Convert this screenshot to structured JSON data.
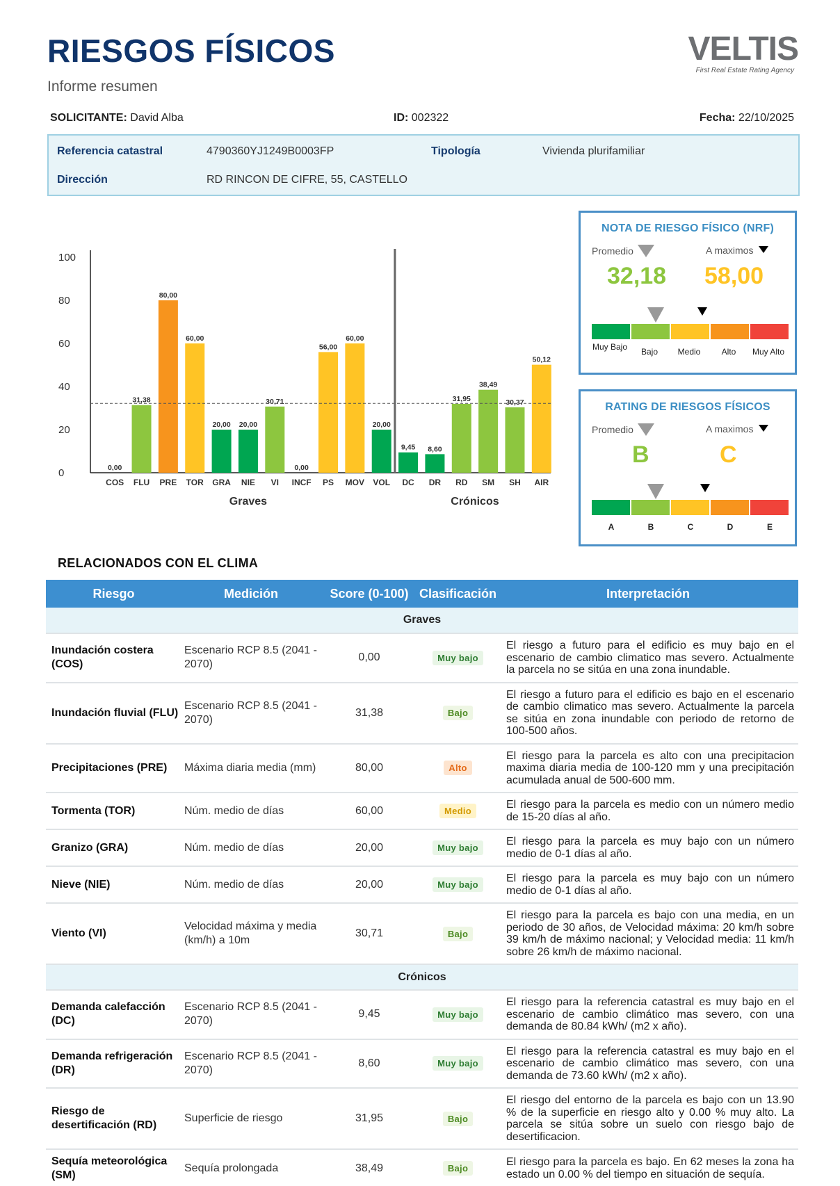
{
  "header": {
    "title": "RIESGOS FÍSICOS",
    "subtitle": "Informe resumen",
    "logo_text": "VELTIS",
    "logo_tagline": "First Real Estate Rating Agency"
  },
  "meta": {
    "solicitante_label": "SOLICITANTE:",
    "solicitante_value": "David Alba",
    "id_label": "ID:",
    "id_value": "002322",
    "fecha_label": "Fecha:",
    "fecha_value": "22/10/2025"
  },
  "info": {
    "ref_label": "Referencia catastral",
    "ref_value": "4790360YJ1249B0003FP",
    "tipo_label": "Tipología",
    "tipo_value": "Vivienda plurifamiliar",
    "dir_label": "Dirección",
    "dir_value": "RD RINCON DE CIFRE, 55, CASTELLO"
  },
  "chart_data": {
    "type": "bar",
    "categories": [
      "COS",
      "FLU",
      "PRE",
      "TOR",
      "GRA",
      "NIE",
      "VI",
      "INCF",
      "PS",
      "MOV",
      "VOL",
      "DC",
      "DR",
      "RD",
      "SM",
      "SH",
      "AIR"
    ],
    "values": [
      0.0,
      31.38,
      80.0,
      60.0,
      20.0,
      20.0,
      30.71,
      0.0,
      56.0,
      60.0,
      20.0,
      9.45,
      8.6,
      31.95,
      38.49,
      30.37,
      50.12
    ],
    "value_labels": [
      "0,00",
      "31,38",
      "80,00",
      "60,00",
      "20,00",
      "20,00",
      "30,71",
      "0,00",
      "56,00",
      "60,00",
      "20,00",
      "9,45",
      "8,60",
      "31,95",
      "38,49",
      "30,37",
      "50,12"
    ],
    "colors": [
      "#00a651",
      "#8dc63f",
      "#f7941d",
      "#ffc425",
      "#00a651",
      "#00a651",
      "#8dc63f",
      "#00a651",
      "#ffc425",
      "#ffc425",
      "#00a651",
      "#00a651",
      "#00a651",
      "#8dc63f",
      "#8dc63f",
      "#8dc63f",
      "#ffc425"
    ],
    "groups": [
      {
        "label": "Graves",
        "from": 0,
        "to": 10
      },
      {
        "label": "Crónicos",
        "from": 11,
        "to": 16
      }
    ],
    "average_line": 32.18,
    "ylim": [
      0,
      100
    ],
    "yticks": [
      0,
      20,
      40,
      60,
      80,
      100
    ]
  },
  "nrf": {
    "title": "NOTA DE RIESGO FÍSICO (NRF)",
    "promedio_label": "Promedio",
    "maximos_label": "A maximos",
    "promedio_value": "32,18",
    "maximos_value": "58,00",
    "promedio_color": "#8dc63f",
    "maximos_color": "#ffc425",
    "scale_labels": [
      "Muy Bajo",
      "Bajo",
      "Medio",
      "Alto",
      "Muy Alto"
    ]
  },
  "rating": {
    "title": "RATING DE RIESGOS FÍSICOS",
    "promedio_label": "Promedio",
    "maximos_label": "A maximos",
    "promedio_value": "B",
    "maximos_value": "C",
    "scale_labels": [
      "A",
      "B",
      "C",
      "D",
      "E"
    ]
  },
  "scale_colors": [
    "#00a651",
    "#8dc63f",
    "#ffc425",
    "#f7941d",
    "#f0433a"
  ],
  "table": {
    "section_title": "RELACIONADOS CON EL CLIMA",
    "headers": [
      "Riesgo",
      "Medición",
      "Score (0-100)",
      "Clasificación",
      "Interpretación"
    ],
    "group_graves": "Graves",
    "group_cronicos": "Crónicos",
    "rows": [
      {
        "riesgo": "Inundación costera (COS)",
        "medicion": "Escenario RCP 8.5 (2041 - 2070)",
        "score": "0,00",
        "clase": "Muy bajo",
        "interp": "El riesgo a futuro para el edificio es muy bajo en el escenario de cambio climatico mas severo. Actualmente la parcela no se sitúa en una zona inundable."
      },
      {
        "riesgo": "Inundación fluvial (FLU)",
        "medicion": "Escenario RCP 8.5 (2041 - 2070)",
        "score": "31,38",
        "clase": "Bajo",
        "interp": "El riesgo a futuro para el edificio es bajo en el escenario de cambio climatico mas severo. Actualmente la parcela se sitúa en zona inundable con periodo de retorno de 100-500 años."
      },
      {
        "riesgo": "Precipitaciones (PRE)",
        "medicion": "Máxima diaria media (mm)",
        "score": "80,00",
        "clase": "Alto",
        "interp": "El riesgo para la parcela es alto con una precipitacion maxima diaria media de 100-120 mm y una precipitación acumulada anual de 500-600 mm."
      },
      {
        "riesgo": "Tormenta (TOR)",
        "medicion": "Núm. medio de días",
        "score": "60,00",
        "clase": "Medio",
        "interp": "El riesgo para la parcela es medio con un número medio de 15-20 días al año."
      },
      {
        "riesgo": "Granizo (GRA)",
        "medicion": "Núm. medio de días",
        "score": "20,00",
        "clase": "Muy bajo",
        "interp": "El riesgo para la parcela es muy bajo con un número medio de 0-1 días al año."
      },
      {
        "riesgo": "Nieve (NIE)",
        "medicion": "Núm. medio de días",
        "score": "20,00",
        "clase": "Muy bajo",
        "interp": "El riesgo para la parcela es muy bajo con un número medio de 0-1 días al año."
      },
      {
        "riesgo": "Viento (VI)",
        "medicion": "Velocidad máxima y media (km/h) a 10m",
        "score": "30,71",
        "clase": "Bajo",
        "interp": "El riesgo para la parcela es bajo con una media, en un periodo de 30 años, de Velocidad máxima: 20 km/h sobre 39 km/h de máximo nacional; y Velocidad media: 11 km/h sobre 26 km/h de máximo nacional."
      },
      {
        "riesgo": "Demanda calefacción (DC)",
        "medicion": "Escenario RCP 8.5 (2041 - 2070)",
        "score": "9,45",
        "clase": "Muy bajo",
        "interp": "El riesgo para la referencia catastral es muy bajo en el escenario de cambio climático mas severo, con una demanda de 80.84 kWh/ (m2 x año)."
      },
      {
        "riesgo": "Demanda refrigeración (DR)",
        "medicion": "Escenario RCP 8.5 (2041 - 2070)",
        "score": "8,60",
        "clase": "Muy bajo",
        "interp": "El riesgo para la referencia catastral es muy bajo en el escenario de cambio climático mas severo, con una demanda de 73.60 kWh/ (m2 x año)."
      },
      {
        "riesgo": "Riesgo de desertificación (RD)",
        "medicion": "Superficie de riesgo",
        "score": "31,95",
        "clase": "Bajo",
        "interp": "El riesgo del entorno de la parcela es bajo con un 13.90 % de la superficie en riesgo alto y 0.00 % muy alto. La parcela se sitúa sobre un suelo con riesgo bajo de desertificacion."
      },
      {
        "riesgo": "Sequía meteorológica (SM)",
        "medicion": "Sequía prolongada",
        "score": "38,49",
        "clase": "Bajo",
        "interp": "El riesgo para la parcela es bajo. En 62 meses la zona ha estado un 0.00 % del tiempo en situación de sequía."
      }
    ]
  }
}
